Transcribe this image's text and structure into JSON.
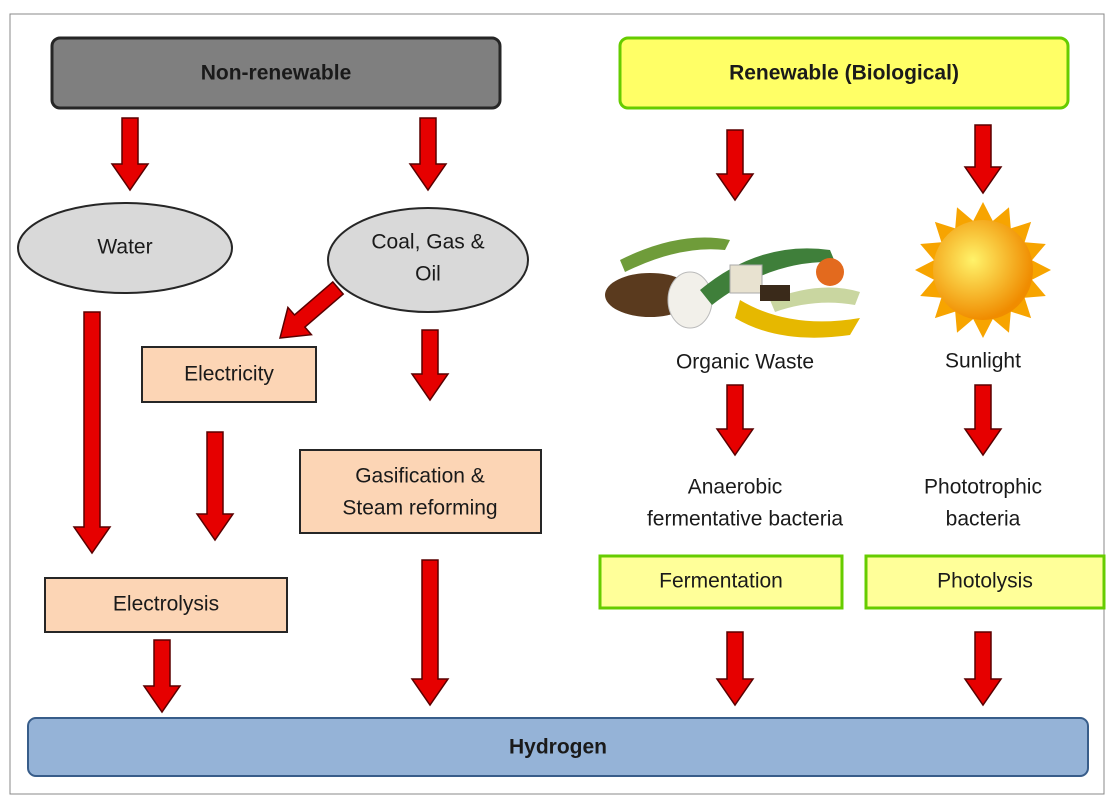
{
  "non_renewable": {
    "title": "Non-renewable",
    "sources": [
      "Water",
      "Coal, Gas & Oil"
    ],
    "coal_lines": [
      "Coal, Gas &",
      "Oil"
    ],
    "steps": {
      "electricity": "Electricity",
      "gasification_lines": [
        "Gasification &",
        "Steam reforming"
      ],
      "electrolysis": "Electrolysis"
    }
  },
  "renewable": {
    "title": "Renewable (Biological)",
    "sources": [
      "Organic Waste",
      "Sunlight"
    ],
    "organisms": [
      [
        "Anaerobic",
        "fermentative bacteria"
      ],
      [
        "Phototrophic",
        "bacteria"
      ]
    ],
    "processes": [
      "Fermentation",
      "Photolysis"
    ]
  },
  "product": "Hydrogen"
}
